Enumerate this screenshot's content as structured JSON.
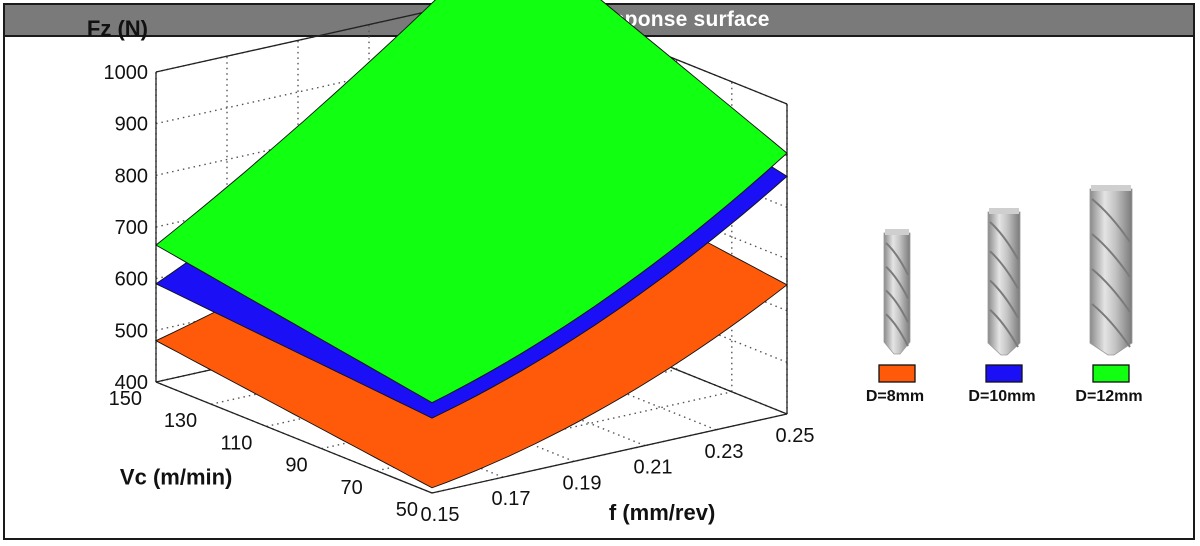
{
  "title": "Thrust force 3D response surface",
  "chart_data": {
    "type": "surface",
    "title": "Thrust force 3D response surface",
    "xlabel": "f (mm/rev)",
    "ylabel": "Vc (m/min)",
    "zlabel": "Fz (N)",
    "x_ticks": [
      "0.15",
      "0.17",
      "0.19",
      "0.21",
      "0.23",
      "0.25"
    ],
    "y_ticks": [
      "50",
      "70",
      "90",
      "110",
      "130",
      "150"
    ],
    "z_ticks": [
      "400",
      "500",
      "600",
      "700",
      "800",
      "900",
      "1000"
    ],
    "xlim": [
      0.15,
      0.25
    ],
    "ylim": [
      50,
      150
    ],
    "zlim": [
      400,
      1000
    ],
    "grid": true,
    "legend_position": "right",
    "series": [
      {
        "name": "D=8mm",
        "color": "#ff5a0a",
        "corners": {
          "f0.15_vc150": 480,
          "f0.15_vc50": 410,
          "f0.25_vc50": 650,
          "f0.25_vc150": 720
        }
      },
      {
        "name": "D=10mm",
        "color": "#1a0ff5",
        "corners": {
          "f0.15_vc150": 590,
          "f0.15_vc50": 545,
          "f0.25_vc50": 860,
          "f0.25_vc150": 980
        }
      },
      {
        "name": "D=12mm",
        "color": "#11ff11",
        "corners": {
          "f0.15_vc150": 665,
          "f0.15_vc50": 575,
          "f0.25_vc50": 905,
          "f0.25_vc150": 1130
        }
      }
    ]
  },
  "legend": {
    "items": [
      {
        "label": "D=8mm",
        "color": "#ff5a0a",
        "icon": "drill-bit-8mm-icon"
      },
      {
        "label": "D=10mm",
        "color": "#1a0ff5",
        "icon": "drill-bit-10mm-icon"
      },
      {
        "label": "D=12mm",
        "color": "#11ff11",
        "icon": "drill-bit-12mm-icon"
      }
    ]
  }
}
